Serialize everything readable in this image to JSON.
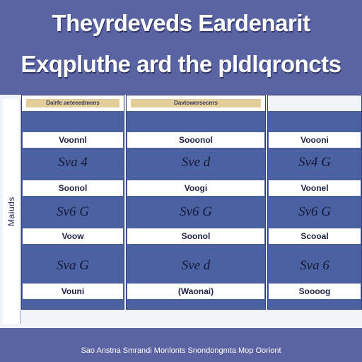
{
  "title_line1": "Theyrdeveds Eardenarit",
  "title_line2": "Exqpluthe ard the pldlqroncts",
  "side_label": "Maiuds",
  "columns": [
    {
      "header": "Dalrfe aeteeedmens",
      "cells": [
        "Voonnl",
        "Sva 4",
        "Soonol",
        "Sv6 G",
        "Voow",
        "Sva G",
        "Vouni"
      ]
    },
    {
      "header": "Davtowersecnrs",
      "cells": [
        "Sooonol",
        "Sve d",
        "Voogi",
        "Sv6 G",
        "Soonol",
        "Sve d",
        "(Waonai)"
      ]
    },
    {
      "header": "",
      "cells": [
        "Voooni",
        "Sv4 G",
        "Voonel",
        "Sv6 G",
        "Scooal",
        "Sva 6",
        "Soooog"
      ]
    }
  ],
  "footer": "Sao Anstna Smrandi Monlonts Snondongmta Mop Ooriont"
}
